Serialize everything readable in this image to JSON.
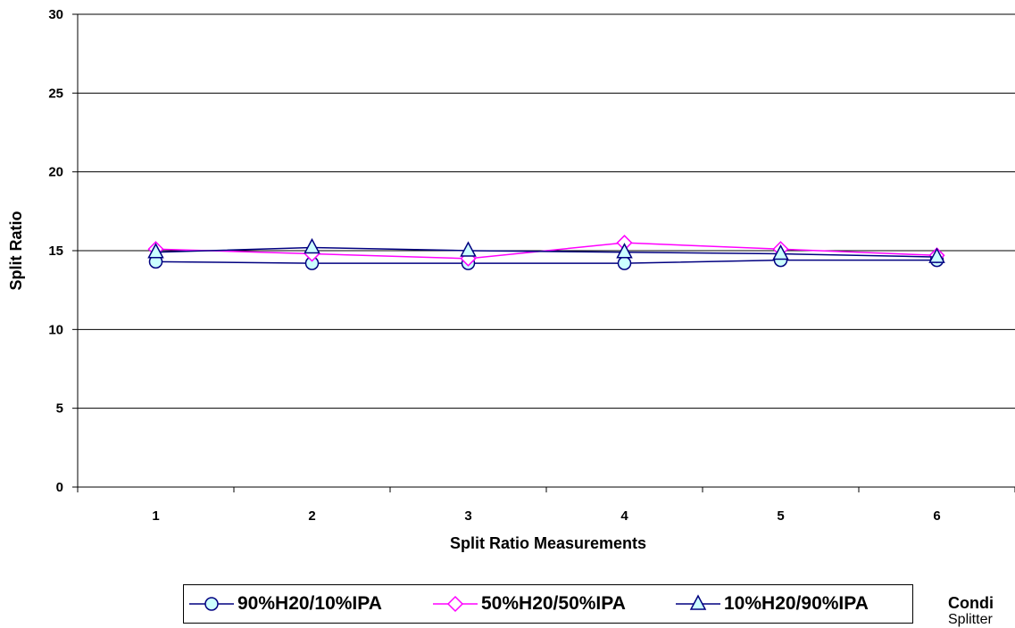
{
  "chart_data": {
    "type": "line",
    "title": "",
    "xlabel": "Split Ratio Measurements",
    "ylabel": "Split Ratio",
    "categories": [
      "1",
      "2",
      "3",
      "4",
      "5",
      "6"
    ],
    "ylim": [
      0,
      30
    ],
    "yticks": [
      "0",
      "5",
      "10",
      "15",
      "20",
      "25",
      "30"
    ],
    "grid": "horizontal",
    "legend_placement": "bottom",
    "series": [
      {
        "name": "90%H20/10%IPA",
        "marker": "circle",
        "color": "#000080",
        "fill": "#ccffff",
        "values": [
          14.3,
          14.2,
          14.2,
          14.2,
          14.4,
          14.4
        ]
      },
      {
        "name": "50%H20/50%IPA",
        "marker": "diamond",
        "color": "#ff00ff",
        "fill": "#ffffff",
        "values": [
          15.1,
          14.8,
          14.5,
          15.5,
          15.1,
          14.7
        ]
      },
      {
        "name": "10%H20/90%IPA",
        "marker": "triangle",
        "color": "#000080",
        "fill": "#ccffff",
        "values": [
          14.9,
          15.2,
          15.0,
          14.9,
          14.8,
          14.6
        ]
      }
    ]
  },
  "side_note": {
    "title": "Condi",
    "line1": "Splitter"
  }
}
